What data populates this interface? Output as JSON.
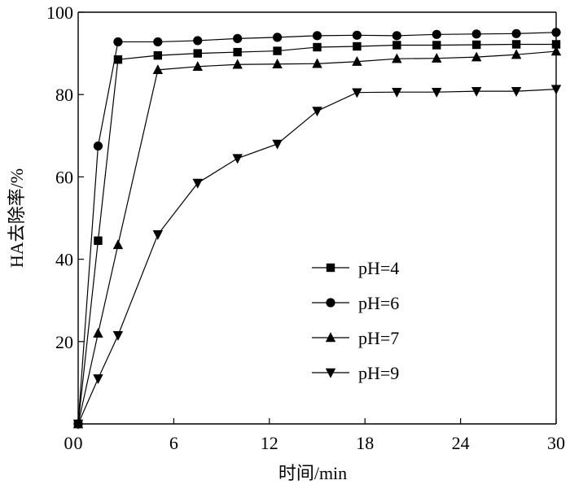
{
  "chart_data": {
    "type": "line",
    "xlabel": "时间/min",
    "ylabel": "HA去除率/%",
    "xlim": [
      0,
      30
    ],
    "ylim": [
      0,
      100
    ],
    "xticks": [
      0,
      6,
      12,
      18,
      24,
      30
    ],
    "yticks": [
      20,
      40,
      60,
      80,
      100
    ],
    "origin_label": "0",
    "grid": false,
    "legend_position": "center-right",
    "series": [
      {
        "name": "pH=4",
        "marker": "square",
        "x": [
          0,
          1.25,
          2.5,
          5,
          7.5,
          10,
          12.5,
          15,
          17.5,
          20,
          22.5,
          25,
          27.5,
          30
        ],
        "y": [
          0,
          44.5,
          88.5,
          89.5,
          90,
          90.3,
          90.6,
          91.5,
          91.7,
          92,
          92,
          92.1,
          92.2,
          92.2
        ]
      },
      {
        "name": "pH=6",
        "marker": "circle",
        "x": [
          0,
          1.25,
          2.5,
          5,
          7.5,
          10,
          12.5,
          15,
          17.5,
          20,
          22.5,
          25,
          27.5,
          30
        ],
        "y": [
          0,
          67.5,
          92.8,
          92.8,
          93.1,
          93.6,
          93.9,
          94.3,
          94.4,
          94.3,
          94.6,
          94.7,
          94.8,
          95.1
        ]
      },
      {
        "name": "pH=7",
        "marker": "triangle-up",
        "x": [
          0,
          1.25,
          2.5,
          5,
          7.5,
          10,
          12.5,
          15,
          17.5,
          20,
          22.5,
          25,
          27.5,
          30
        ],
        "y": [
          0,
          22,
          43.5,
          86,
          86.8,
          87.3,
          87.4,
          87.5,
          88,
          88.7,
          88.8,
          89.1,
          89.7,
          90.5
        ]
      },
      {
        "name": "pH=9",
        "marker": "triangle-down",
        "x": [
          0,
          1.25,
          2.5,
          5,
          7.5,
          10,
          12.5,
          15,
          17.5,
          20,
          22.5,
          25,
          27.5,
          30
        ],
        "y": [
          0,
          11,
          21.5,
          46,
          58.5,
          64.5,
          68,
          76,
          80.5,
          80.6,
          80.6,
          80.8,
          80.8,
          81.3
        ]
      }
    ]
  }
}
